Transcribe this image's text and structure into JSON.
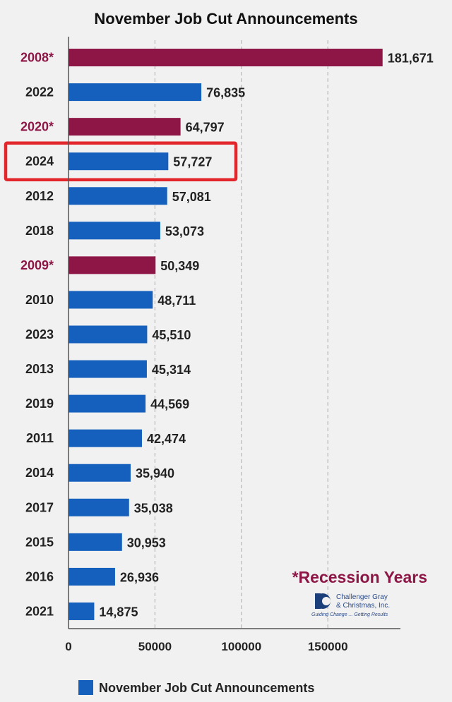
{
  "chart_data": {
    "type": "bar",
    "orientation": "horizontal",
    "title": "November Job Cut Announcements",
    "categories": [
      "2008*",
      "2022",
      "2020*",
      "2024",
      "2012",
      "2018",
      "2009*",
      "2010",
      "2023",
      "2013",
      "2019",
      "2011",
      "2014",
      "2017",
      "2015",
      "2016",
      "2021"
    ],
    "values": [
      181671,
      76835,
      64797,
      57727,
      57081,
      53073,
      50349,
      48711,
      45510,
      45314,
      44569,
      42474,
      35940,
      35038,
      30953,
      26936,
      14875
    ],
    "value_labels": [
      "181,671",
      "76,835",
      "64,797",
      "57,727",
      "57,081",
      "53,073",
      "50,349",
      "48,711",
      "45,510",
      "45,314",
      "44,569",
      "42,474",
      "35,940",
      "35,038",
      "30,953",
      "26,936",
      "14,875"
    ],
    "recession": [
      true,
      false,
      true,
      false,
      false,
      false,
      true,
      false,
      false,
      false,
      false,
      false,
      false,
      false,
      false,
      false,
      false
    ],
    "highlighted_category": "2024",
    "xlim": [
      0,
      192000
    ],
    "xticks": [
      0,
      50000,
      100000,
      150000
    ],
    "xtick_labels": [
      "0",
      "50000",
      "100000",
      "150000"
    ],
    "grid": "vertical dashed",
    "legend": {
      "label": "November Job Cut Announcements",
      "position": "bottom"
    },
    "annotation": "*Recession Years",
    "colors": {
      "normal_bar": "#1560bd",
      "recession_bar": "#8e1646",
      "recession_label": "#8e1646",
      "normal_label": "#222222",
      "highlight_box": "#e3262b"
    }
  },
  "logo": {
    "line1": "Challenger Gray",
    "line2": "& Christmas, Inc.",
    "tagline": "Guiding Change ... Getting Results"
  }
}
